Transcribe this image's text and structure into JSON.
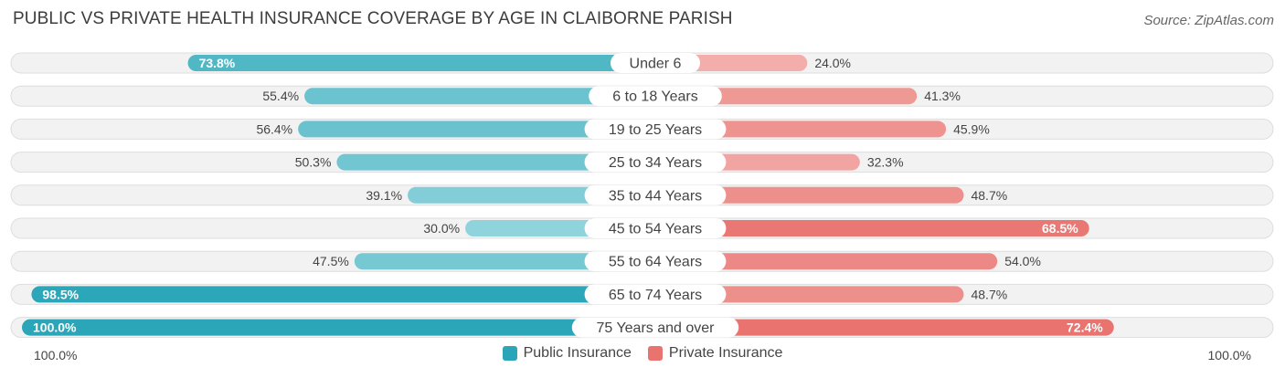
{
  "chart_data": {
    "type": "bar",
    "orientation": "horizontal-diverging",
    "title": "PUBLIC VS PRIVATE HEALTH INSURANCE COVERAGE BY AGE IN CLAIBORNE PARISH",
    "source": "Source: ZipAtlas.com",
    "categories": [
      "Under 6",
      "6 to 18 Years",
      "19 to 25 Years",
      "25 to 34 Years",
      "35 to 44 Years",
      "45 to 54 Years",
      "55 to 64 Years",
      "65 to 74 Years",
      "75 Years and over"
    ],
    "series": [
      {
        "name": "Public Insurance",
        "values": [
          73.8,
          55.4,
          56.4,
          50.3,
          39.1,
          30.0,
          47.5,
          98.5,
          100.0
        ],
        "labels": [
          "73.8%",
          "55.4%",
          "56.4%",
          "50.3%",
          "39.1%",
          "30.0%",
          "47.5%",
          "98.5%",
          "100.0%"
        ]
      },
      {
        "name": "Private Insurance",
        "values": [
          24.0,
          41.3,
          45.9,
          32.3,
          48.7,
          68.5,
          54.0,
          48.7,
          72.4
        ],
        "labels": [
          "24.0%",
          "41.3%",
          "45.9%",
          "32.3%",
          "48.7%",
          "68.5%",
          "54.0%",
          "48.7%",
          "72.4%"
        ]
      }
    ],
    "axis": {
      "left_label": "100.0%",
      "right_label": "100.0%",
      "range": [
        0,
        100
      ]
    },
    "legend": {
      "position": "bottom-center"
    },
    "colors": {
      "public_dark": "#2aa6b8",
      "public_light": "#8fd3dc",
      "private_dark": "#e8736f",
      "private_light": "#f3aeab",
      "track": "#f2f2f2",
      "track_border": "#dddddd",
      "pill_bg": "#ffffff"
    }
  }
}
